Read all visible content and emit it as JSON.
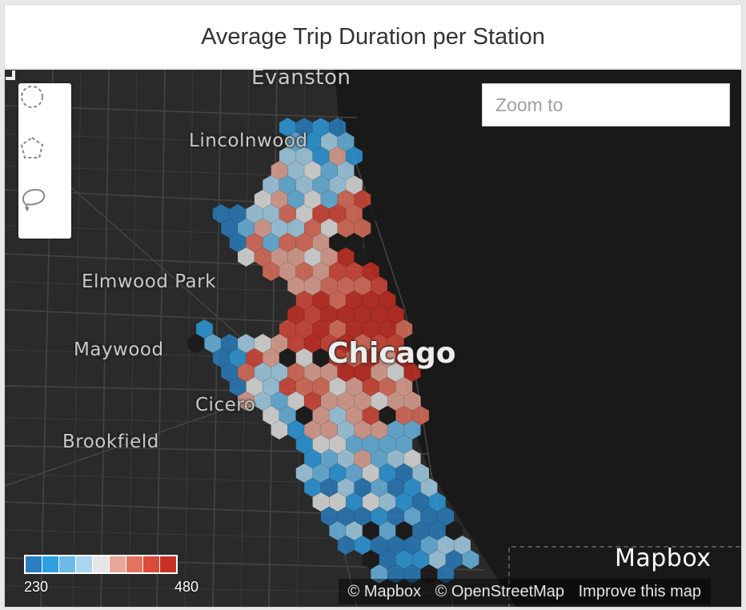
{
  "card": {
    "title": "Average Trip Duration per Station"
  },
  "map": {
    "places": {
      "evanston": "Evanston",
      "lincolnwood": "Lincolnwood",
      "elmwood_park": "Elmwood Park",
      "maywood": "Maywood",
      "cicero": "Cicero",
      "brookfield": "Brookfield",
      "chicago": "Chicago"
    },
    "colors": {
      "land": "#2a2a2a",
      "water": "#191919",
      "roads": "#454545"
    }
  },
  "toolbox": {
    "tools": [
      {
        "name": "circle-select-icon"
      },
      {
        "name": "polygon-select-icon"
      },
      {
        "name": "lasso-select-icon"
      }
    ]
  },
  "search": {
    "placeholder": "Zoom to",
    "value": ""
  },
  "legend": {
    "min_label": "230",
    "max_label": "480",
    "min": 230,
    "max": 480,
    "colors": [
      "#2a7fc0",
      "#2e9fe0",
      "#6cbbe6",
      "#a9d6ee",
      "#e6e6e6",
      "#e8a898",
      "#e4735e",
      "#db4b3a",
      "#c93024"
    ]
  },
  "logo": {
    "text": "Mapbox"
  },
  "attribution": {
    "mapbox": "© Mapbox",
    "osm": "© OpenStreetMap",
    "improve": "Improve this map"
  }
}
